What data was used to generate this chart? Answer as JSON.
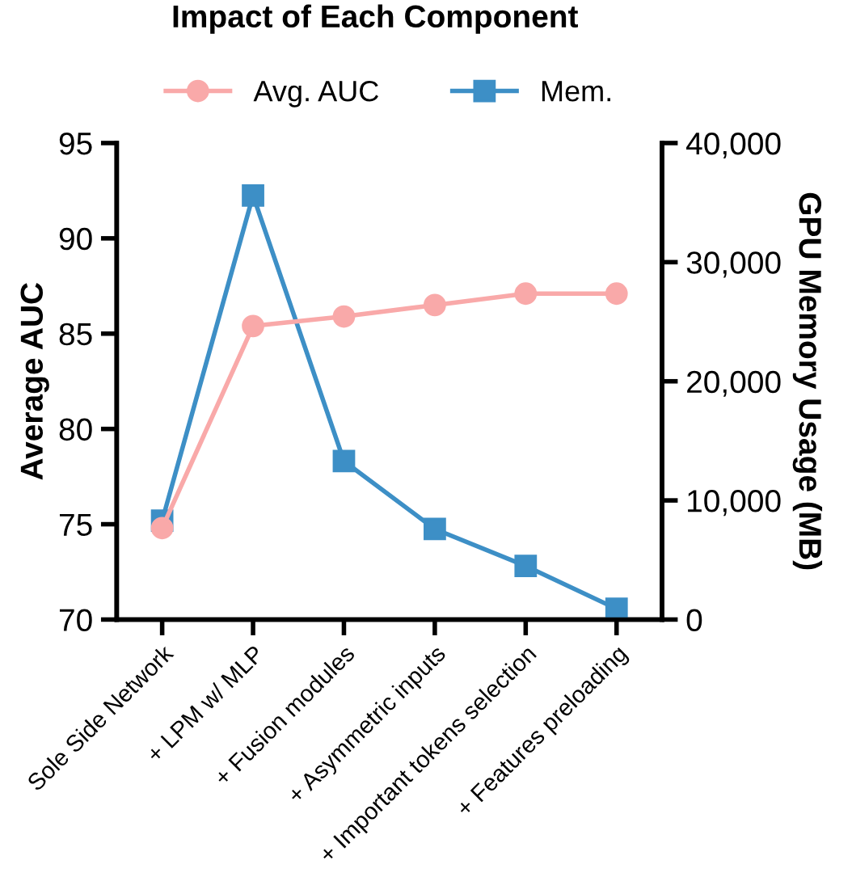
{
  "chart_data": {
    "type": "line",
    "title": "Impact of Each Component",
    "ylabel": "Average AUC",
    "y2label": "GPU Memory Usage (MB)",
    "categories": [
      "Sole Side Network",
      "+ LPM w/ MLP",
      "+ Fusion modules",
      "+ Asymmetric inputs",
      "+ Important tokens selection",
      "+ Features preloading"
    ],
    "series": [
      {
        "name": "Avg. AUC",
        "color": "#f9a9a9",
        "marker": "circle",
        "values": [
          74.8,
          85.4,
          85.9,
          86.5,
          87.1,
          87.1
        ]
      },
      {
        "name": "Mem.",
        "color": "#3d8fc6",
        "marker": "square",
        "axis": "y2",
        "values": [
          8300,
          35600,
          13300,
          7600,
          4500,
          900
        ]
      }
    ],
    "ylim": [
      70,
      95
    ],
    "yticks": [
      70,
      75,
      80,
      85,
      90,
      95
    ],
    "y2lim": [
      0,
      40000
    ],
    "y2ticks": [
      {
        "value": 0,
        "label": "0"
      },
      {
        "value": 10000,
        "label": "10,000"
      },
      {
        "value": 20000,
        "label": "20,000"
      },
      {
        "value": 30000,
        "label": "30,000"
      },
      {
        "value": 40000,
        "label": "40,000"
      }
    ],
    "grid": false,
    "legend": "top",
    "line_style": "solid"
  }
}
